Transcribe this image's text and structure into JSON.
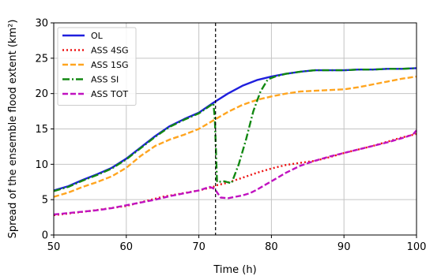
{
  "chart_data": {
    "type": "line",
    "xlabel": "Time (h)",
    "ylabel": "Spread of the ensemble flood extent (km²)",
    "xlim": [
      50,
      100
    ],
    "ylim": [
      0,
      30
    ],
    "xticks": [
      50,
      60,
      70,
      80,
      90,
      100
    ],
    "yticks": [
      0,
      5,
      10,
      15,
      20,
      25,
      30
    ],
    "xtick_labels": [
      "50",
      "60",
      "70",
      "80",
      "90",
      "100"
    ],
    "ytick_labels": [
      "0",
      "5",
      "10",
      "15",
      "20",
      "25",
      "30"
    ],
    "grid": true,
    "legend_position": "top-left",
    "vline_x": 72.3,
    "series": [
      {
        "name": "OL",
        "color": "#1f1fdd",
        "dash": "solid",
        "x": [
          50,
          52,
          54,
          56,
          58,
          60,
          62,
          64,
          66,
          68,
          70,
          72,
          74,
          76,
          78,
          80,
          82,
          84,
          86,
          88,
          90,
          92,
          94,
          96,
          98,
          100
        ],
        "y": [
          6.3,
          6.9,
          7.8,
          8.6,
          9.5,
          10.8,
          12.4,
          14.0,
          15.4,
          16.4,
          17.3,
          18.7,
          20.0,
          21.1,
          21.9,
          22.4,
          22.8,
          23.1,
          23.3,
          23.3,
          23.3,
          23.4,
          23.4,
          23.5,
          23.5,
          23.6
        ]
      },
      {
        "name": "ASS 4SG",
        "color": "#ee1111",
        "dash": "dot",
        "x": [
          50,
          55,
          60,
          65,
          70,
          72,
          72.3,
          74,
          76,
          78,
          80,
          82,
          84,
          86,
          88,
          90,
          92,
          94,
          96,
          98,
          100
        ],
        "y": [
          2.8,
          3.4,
          4.1,
          5.4,
          6.3,
          6.8,
          7.0,
          7.4,
          8.1,
          8.8,
          9.4,
          9.9,
          10.2,
          10.5,
          11.0,
          11.6,
          12.1,
          12.6,
          13.2,
          13.8,
          14.3
        ]
      },
      {
        "name": "ASS 1SG",
        "color": "#ffa520",
        "dash": "dash",
        "x": [
          50,
          52,
          54,
          56,
          58,
          60,
          62,
          64,
          66,
          68,
          70,
          72,
          74,
          76,
          78,
          80,
          82,
          84,
          86,
          88,
          90,
          92,
          94,
          96,
          98,
          100
        ],
        "y": [
          5.4,
          6.0,
          6.8,
          7.5,
          8.3,
          9.5,
          11.2,
          12.6,
          13.5,
          14.2,
          15.0,
          16.2,
          17.4,
          18.4,
          19.1,
          19.6,
          20.0,
          20.3,
          20.4,
          20.5,
          20.6,
          20.9,
          21.3,
          21.7,
          22.1,
          22.4
        ]
      },
      {
        "name": "ASS SI",
        "color": "#128812",
        "dash": "dashdot",
        "x": [
          50,
          52,
          54,
          56,
          58,
          60,
          62,
          64,
          66,
          68,
          70,
          72,
          72.2,
          72.5,
          73.5,
          74.5,
          75.5,
          76.5,
          77.5,
          78.5,
          79.5,
          80.5,
          82,
          84,
          86,
          88,
          90,
          92,
          94,
          96,
          98,
          100
        ],
        "y": [
          6.2,
          6.8,
          7.7,
          8.5,
          9.4,
          10.7,
          12.3,
          13.9,
          15.3,
          16.3,
          17.2,
          18.6,
          16.5,
          7.5,
          7.6,
          7.3,
          10.0,
          13.5,
          17.5,
          20.3,
          22.0,
          22.4,
          22.8,
          23.1,
          23.3,
          23.3,
          23.3,
          23.4,
          23.4,
          23.5,
          23.5,
          23.6
        ]
      },
      {
        "name": "ASS TOT",
        "color": "#c012c0",
        "dash": "dash",
        "x": [
          50,
          52,
          54,
          56,
          58,
          60,
          62,
          64,
          66,
          68,
          70,
          71.5,
          72.2,
          73,
          74,
          75,
          76,
          77,
          78,
          79,
          80,
          81,
          82,
          84,
          86,
          88,
          90,
          92,
          94,
          96,
          98,
          99.5,
          100
        ],
        "y": [
          2.9,
          3.1,
          3.3,
          3.5,
          3.8,
          4.2,
          4.6,
          5.0,
          5.5,
          5.9,
          6.3,
          6.8,
          6.5,
          5.3,
          5.2,
          5.4,
          5.6,
          5.9,
          6.4,
          7.0,
          7.6,
          8.2,
          8.8,
          9.8,
          10.5,
          11.1,
          11.6,
          12.1,
          12.6,
          13.1,
          13.7,
          14.2,
          14.8
        ]
      }
    ]
  }
}
